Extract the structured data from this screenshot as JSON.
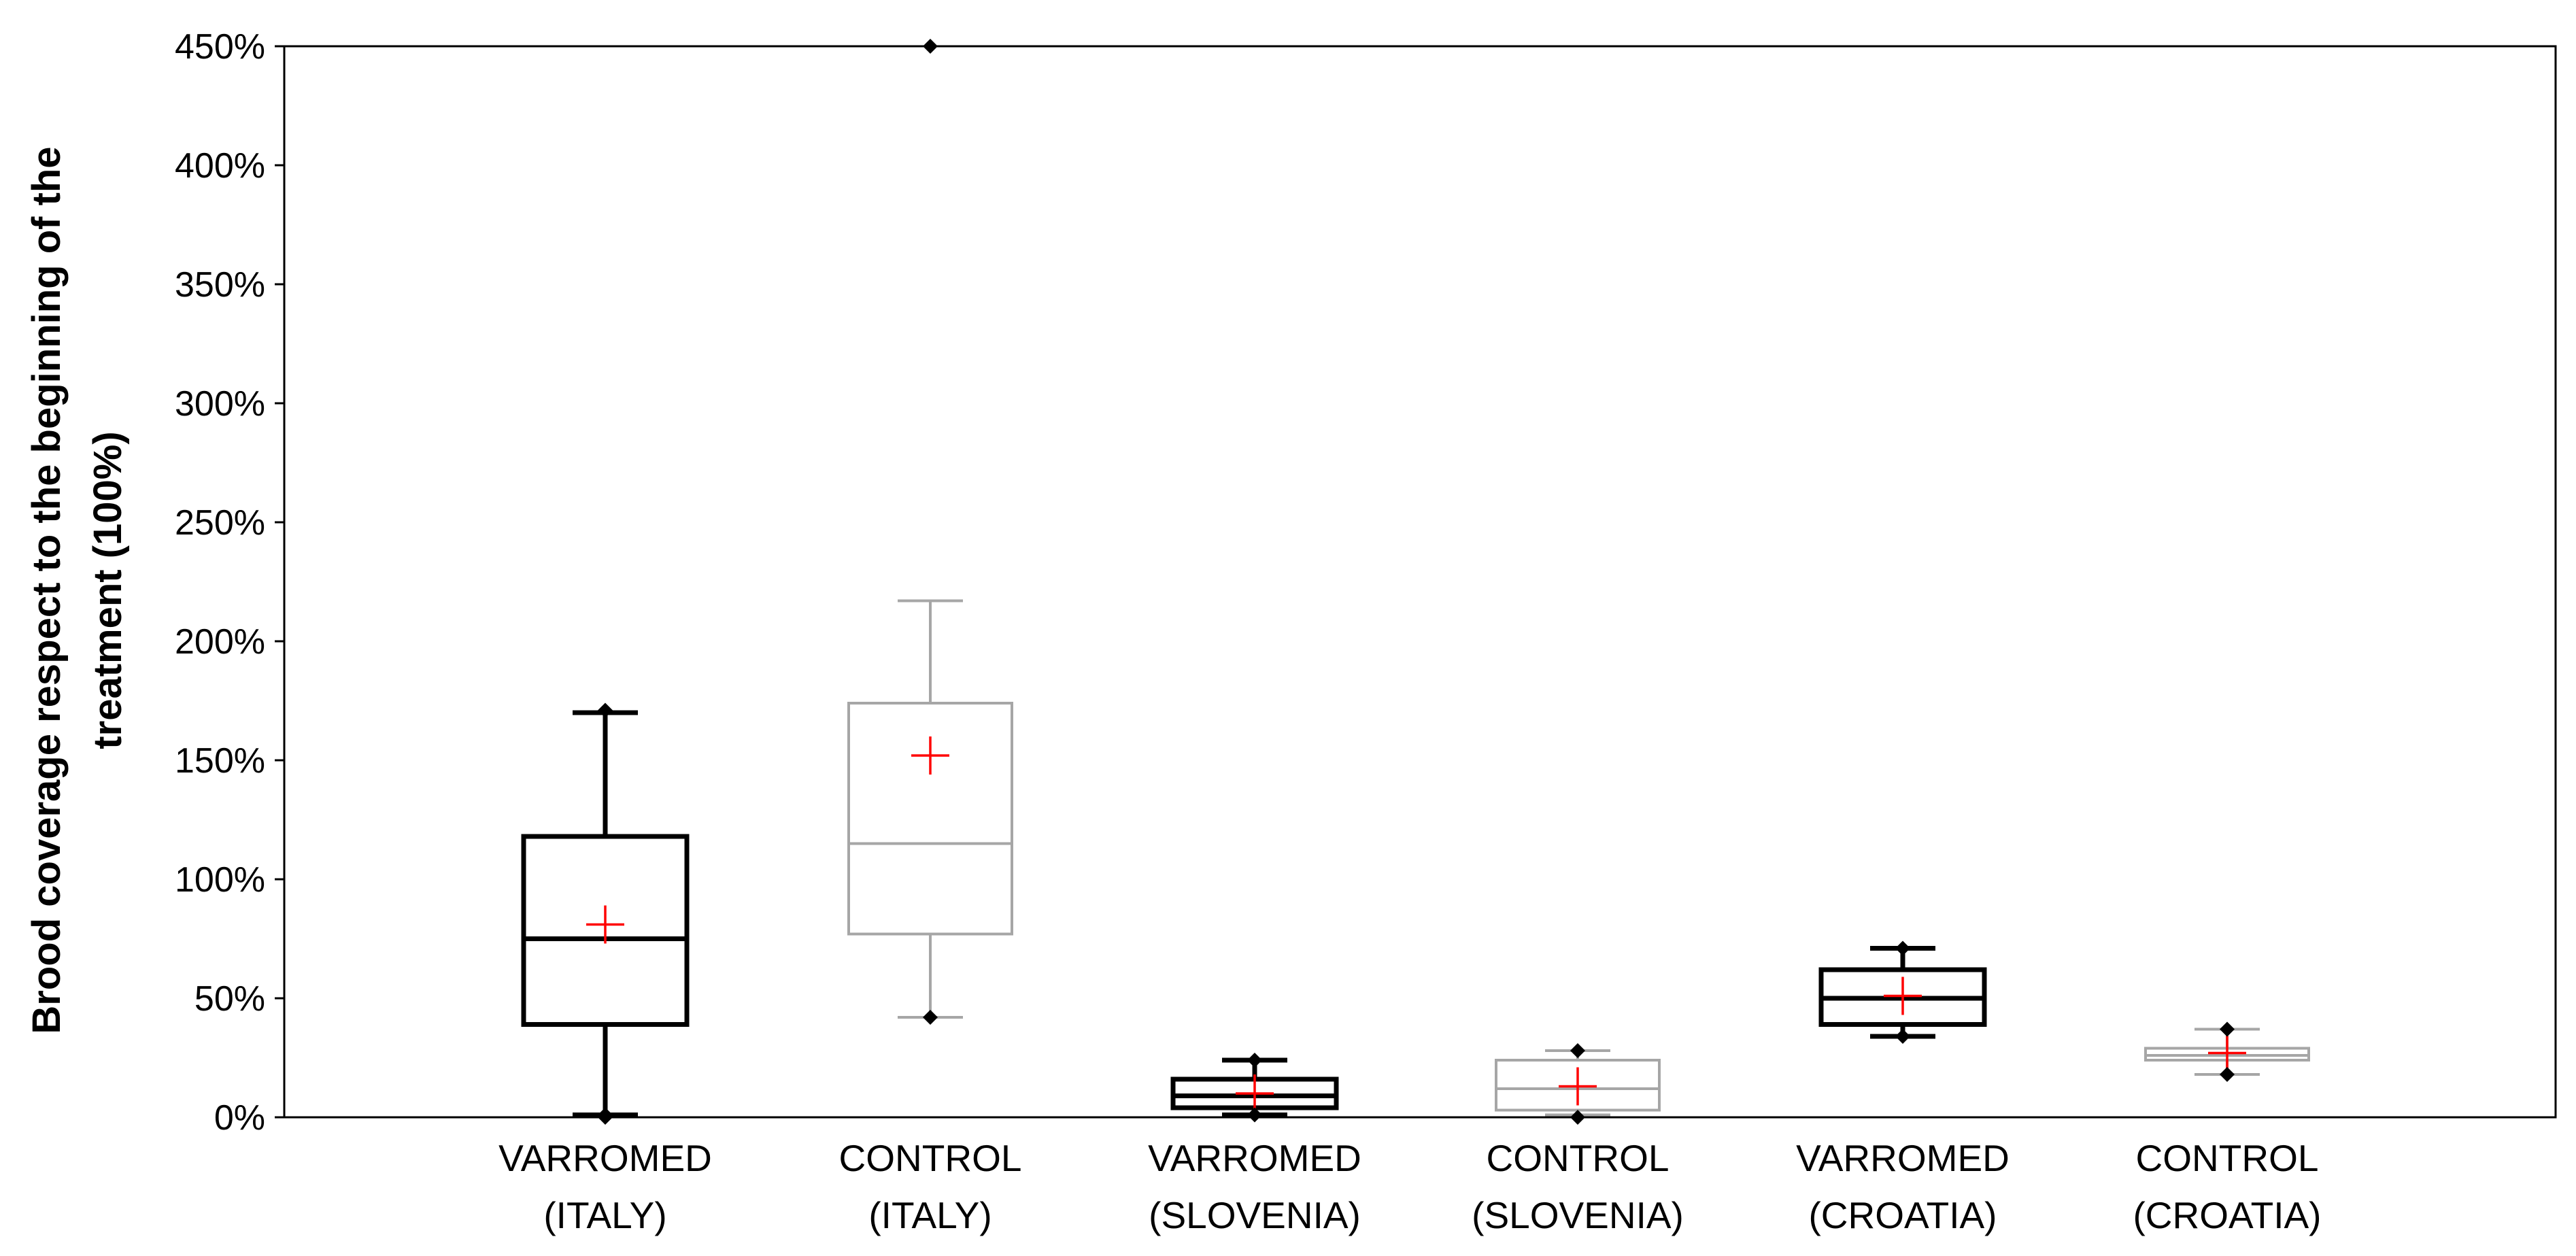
{
  "chart_data": {
    "type": "boxplot",
    "title": "",
    "xlabel": "",
    "ylabel": [
      "Brood coverage respect to the beginning of the",
      "treatment (100%)"
    ],
    "ylim": [
      0,
      450
    ],
    "yticks": [
      0,
      50,
      100,
      150,
      200,
      250,
      300,
      350,
      400,
      450
    ],
    "ytick_labels": [
      "0%",
      "50%",
      "100%",
      "150%",
      "200%",
      "250%",
      "300%",
      "350%",
      "400%",
      "450%"
    ],
    "grid": false,
    "colors": {
      "varromed": "#000000",
      "control": "#a6a6a6",
      "mean_marker": "#ff0000",
      "outlier": "#000000"
    },
    "series": [
      {
        "name": "VARROMED (ITALY)",
        "label_lines": [
          "VARROMED",
          "(ITALY)"
        ],
        "group": "varromed",
        "whisker_low": 1,
        "q1": 39,
        "median": 75,
        "q3": 118,
        "whisker_high": 170,
        "mean": 81,
        "points": [
          0,
          1,
          171
        ]
      },
      {
        "name": "CONTROL (ITALY)",
        "label_lines": [
          "CONTROL",
          "(ITALY)"
        ],
        "group": "control",
        "whisker_low": 42,
        "q1": 77,
        "median": 115,
        "q3": 174,
        "whisker_high": 217,
        "mean": 152,
        "points": [
          42,
          450
        ]
      },
      {
        "name": "VARROMED (SLOVENIA)",
        "label_lines": [
          "VARROMED",
          "(SLOVENIA)"
        ],
        "group": "varromed",
        "whisker_low": 1,
        "q1": 4,
        "median": 9,
        "q3": 16,
        "whisker_high": 24,
        "mean": 10,
        "points": [
          1,
          24
        ]
      },
      {
        "name": "CONTROL (SLOVENIA)",
        "label_lines": [
          "CONTROL",
          "(SLOVENIA)"
        ],
        "group": "control",
        "whisker_low": 1,
        "q1": 3,
        "median": 12,
        "q3": 24,
        "whisker_high": 28,
        "mean": 13,
        "points": [
          0,
          28
        ]
      },
      {
        "name": "VARROMED (CROATIA)",
        "label_lines": [
          "VARROMED",
          "(CROATIA)"
        ],
        "group": "varromed",
        "whisker_low": 34,
        "q1": 39,
        "median": 50,
        "q3": 62,
        "whisker_high": 71,
        "mean": 51,
        "points": [
          34,
          71
        ]
      },
      {
        "name": "CONTROL (CROATIA)",
        "label_lines": [
          "CONTROL",
          "(CROATIA)"
        ],
        "group": "control",
        "whisker_low": 18,
        "q1": 24,
        "median": 26,
        "q3": 29,
        "whisker_high": 37,
        "mean": 27,
        "points": [
          18,
          37
        ]
      }
    ]
  }
}
